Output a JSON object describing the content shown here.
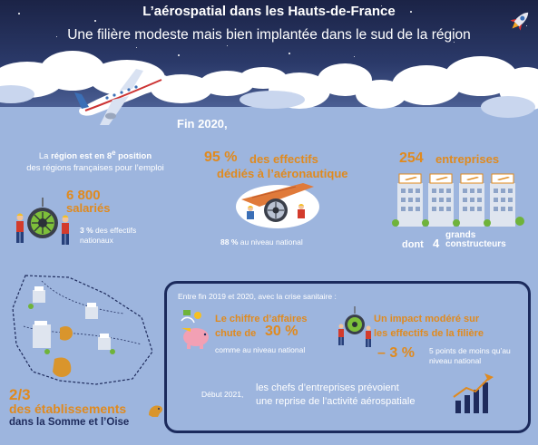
{
  "header": {
    "title": "L’aérospatial dans les Hauts-de-France",
    "subtitle": "Une filière modeste mais bien implantée dans le sud de la région"
  },
  "fin_2020": "Fin 2020,",
  "rank": {
    "line1_pre": "La ",
    "line1_bold": "région est en 8",
    "sup": "e",
    "line1_post": " position",
    "line2": "des régions françaises pour l’emploi"
  },
  "salaries": {
    "number": "6 800",
    "label": "salariés",
    "pct_bold": "3 %",
    "pct_text": " des effectifs nationaux"
  },
  "aero": {
    "pct": "95 %",
    "line1": "des effectifs",
    "line2": "dédiés à l’aéronautique",
    "nat_bold": "88 %",
    "nat_text": " au niveau national"
  },
  "entreprises": {
    "number": "254",
    "label": "entreprises",
    "dont": "dont",
    "dont_num": "4",
    "grands_l1": "grands",
    "grands_l2": "constructeurs"
  },
  "etablissements": {
    "share": "2/3",
    "label": "des établissements",
    "location": "dans la Somme et l’Oise"
  },
  "crisis": {
    "intro": "Entre fin 2019 et 2020, avec la crise sanitaire :",
    "ca_line1": "Le chiffre d’affaires",
    "ca_line2": "chute de",
    "ca_pct": "30 %",
    "ca_nat": "comme au niveau national",
    "imp_line1": "Un impact modéré sur",
    "imp_line2": "les effectifs de la filière",
    "imp_pct": "– 3 %",
    "imp_nat": "5 points de moins qu’au niveau national",
    "debut": "Début 2021,",
    "reprise_l1": "les chefs d’entreprises prévoient",
    "reprise_l2": "une reprise de l’activité aérospatiale"
  },
  "colors": {
    "accent": "#e08a1e",
    "navy": "#1b2a5c",
    "sky": "#9db5de",
    "night": "#1b2346"
  },
  "icons": [
    "rocket-icon",
    "airplane-icon",
    "engine-workers-icon",
    "plane-wing-workers-icon",
    "factory-buildings-icon",
    "region-map-icon",
    "piggy-bank-icon",
    "workers-gear-icon",
    "growth-chart-icon"
  ]
}
